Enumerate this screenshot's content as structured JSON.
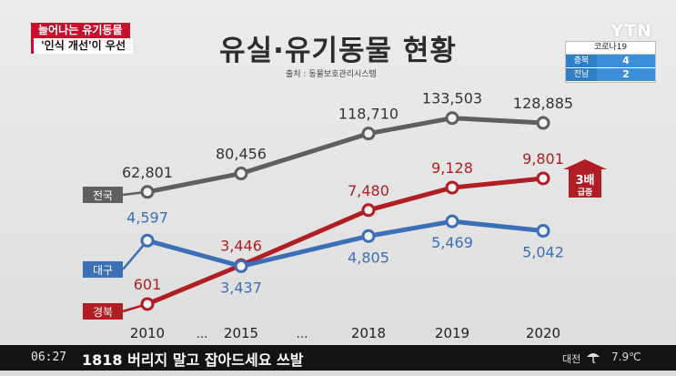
{
  "topic": "늘어나는 유기동물",
  "subtopic": "'인식 개선'이 우선",
  "broadcaster": {
    "logo": "YTN",
    "covid_title": "코로나19",
    "regions": [
      {
        "name": "충북",
        "count": "4"
      },
      {
        "name": "전남",
        "count": "2"
      }
    ]
  },
  "ticker": {
    "time": "06:27",
    "text": "1818 버리지 말고 잡아드세요 쓰발",
    "city": "대전",
    "weather_icon": "umbrella-icon",
    "temperature": "7.9℃"
  },
  "chart_data": {
    "type": "line",
    "title": "유실·유기동물 현황",
    "source": "출처 : 동물보호관리시스템",
    "categories": [
      "2010",
      "…",
      "2015",
      "…",
      "2018",
      "2019",
      "2020"
    ],
    "series": [
      {
        "name": "전국",
        "color": "#5f5f5f",
        "values": [
          62801,
          null,
          80456,
          null,
          118710,
          133503,
          128885
        ],
        "labels": [
          "62,801",
          "",
          "80,456",
          "",
          "118,710",
          "133,503",
          "128,885"
        ]
      },
      {
        "name": "경북",
        "color": "#b01e23",
        "values": [
          601,
          null,
          3446,
          null,
          7480,
          9128,
          9801
        ],
        "labels": [
          "601",
          "",
          "3,446",
          "",
          "7,480",
          "9,128",
          "9,801"
        ]
      },
      {
        "name": "대구",
        "color": "#3d6fb6",
        "values": [
          4597,
          null,
          3437,
          null,
          4805,
          5469,
          5042
        ],
        "labels": [
          "4,597",
          "",
          "3,437",
          "",
          "4,805",
          "5,469",
          "5,042"
        ]
      }
    ],
    "annotation": {
      "text": "3배",
      "subtext": "급증",
      "color": "#b01e23"
    }
  }
}
